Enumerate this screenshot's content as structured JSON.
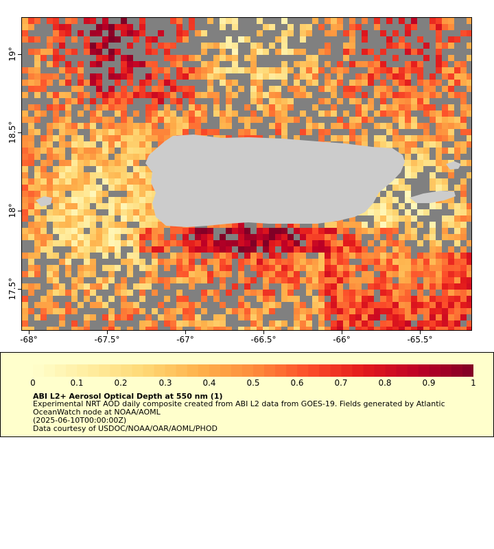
{
  "map": {
    "y_ticks": [
      "19°",
      "18.5°",
      "18°",
      "17.5°"
    ],
    "x_ticks": [
      "-68°",
      "-67.5°",
      "-67°",
      "-66.5°",
      "-66°",
      "-65.5°"
    ],
    "colors": {
      "nodata": "#808080",
      "land": "#cccccc",
      "background": "#ffffff"
    }
  },
  "legend": {
    "colorbar_labels": [
      "0",
      "0.1",
      "0.2",
      "0.3",
      "0.4",
      "0.5",
      "0.6",
      "0.7",
      "0.8",
      "0.9",
      "1"
    ],
    "title": "ABI L2+ Aerosol Optical Depth at 550 nm (1)",
    "line1": "Experimental NRT AOD daily composite created from ABI L2 data from GOES-19. Fields generated by Atlantic",
    "line2": "OceanWatch node at NOAA/AOML",
    "line3": "(2025-06-10T00:00:00Z)",
    "line4": "Data courtesy of USDOC/NOAA/OAR/AOML/PHOD",
    "colors": {
      "box_background": "#ffffcc",
      "scale_start": "#ffffcc",
      "scale_mid": "#fd8d3c",
      "scale_end": "#800026"
    }
  }
}
